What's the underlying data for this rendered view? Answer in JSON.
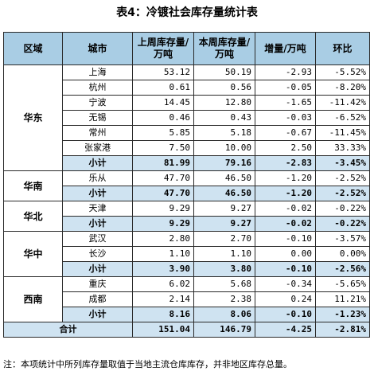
{
  "title": "表4：冷镀社会库存量统计表",
  "columns": [
    "区域",
    "城市",
    "上周库存量/万吨",
    "本周库存量/万吨",
    "增量/万吨",
    "环比"
  ],
  "groups": [
    {
      "region": "华东",
      "rows": [
        {
          "city": "上海",
          "prev": "53.12",
          "curr": "50.19",
          "delta": "-2.93",
          "ratio": "-5.52%"
        },
        {
          "city": "杭州",
          "prev": "0.61",
          "curr": "0.56",
          "delta": "-0.05",
          "ratio": "-8.20%"
        },
        {
          "city": "宁波",
          "prev": "14.45",
          "curr": "12.80",
          "delta": "-1.65",
          "ratio": "-11.42%"
        },
        {
          "city": "无锡",
          "prev": "0.46",
          "curr": "0.43",
          "delta": "-0.03",
          "ratio": "-6.52%"
        },
        {
          "city": "常州",
          "prev": "5.85",
          "curr": "5.18",
          "delta": "-0.67",
          "ratio": "-11.45%"
        },
        {
          "city": "张家港",
          "prev": "7.50",
          "curr": "10.00",
          "delta": "2.50",
          "ratio": "33.33%"
        }
      ],
      "subtotal": {
        "label": "小计",
        "prev": "81.99",
        "curr": "79.16",
        "delta": "-2.83",
        "ratio": "-3.45%"
      }
    },
    {
      "region": "华南",
      "rows": [
        {
          "city": "乐从",
          "prev": "47.70",
          "curr": "46.50",
          "delta": "-1.20",
          "ratio": "-2.52%"
        }
      ],
      "subtotal": {
        "label": "小计",
        "prev": "47.70",
        "curr": "46.50",
        "delta": "-1.20",
        "ratio": "-2.52%"
      }
    },
    {
      "region": "华北",
      "rows": [
        {
          "city": "天津",
          "prev": "9.29",
          "curr": "9.27",
          "delta": "-0.02",
          "ratio": "-0.22%"
        }
      ],
      "subtotal": {
        "label": "小计",
        "prev": "9.29",
        "curr": "9.27",
        "delta": "-0.02",
        "ratio": "-0.22%"
      }
    },
    {
      "region": "华中",
      "rows": [
        {
          "city": "武汉",
          "prev": "2.80",
          "curr": "2.70",
          "delta": "-0.10",
          "ratio": "-3.57%"
        },
        {
          "city": "长沙",
          "prev": "1.10",
          "curr": "1.10",
          "delta": "0.00",
          "ratio": "0.00%"
        }
      ],
      "subtotal": {
        "label": "小计",
        "prev": "3.90",
        "curr": "3.80",
        "delta": "-0.10",
        "ratio": "-2.56%"
      }
    },
    {
      "region": "西南",
      "rows": [
        {
          "city": "重庆",
          "prev": "6.02",
          "curr": "5.68",
          "delta": "-0.34",
          "ratio": "-5.65%"
        },
        {
          "city": "成都",
          "prev": "2.14",
          "curr": "2.38",
          "delta": "0.24",
          "ratio": "11.21%"
        }
      ],
      "subtotal": {
        "label": "小计",
        "prev": "8.16",
        "curr": "8.06",
        "delta": "-0.10",
        "ratio": "-1.23%"
      }
    }
  ],
  "total": {
    "label": "合计",
    "prev": "151.04",
    "curr": "146.79",
    "delta": "-4.25",
    "ratio": "-2.81%"
  },
  "note": "注：本项统计中所列库存量取值于当地主流仓库库存，并非地区库存总量。"
}
